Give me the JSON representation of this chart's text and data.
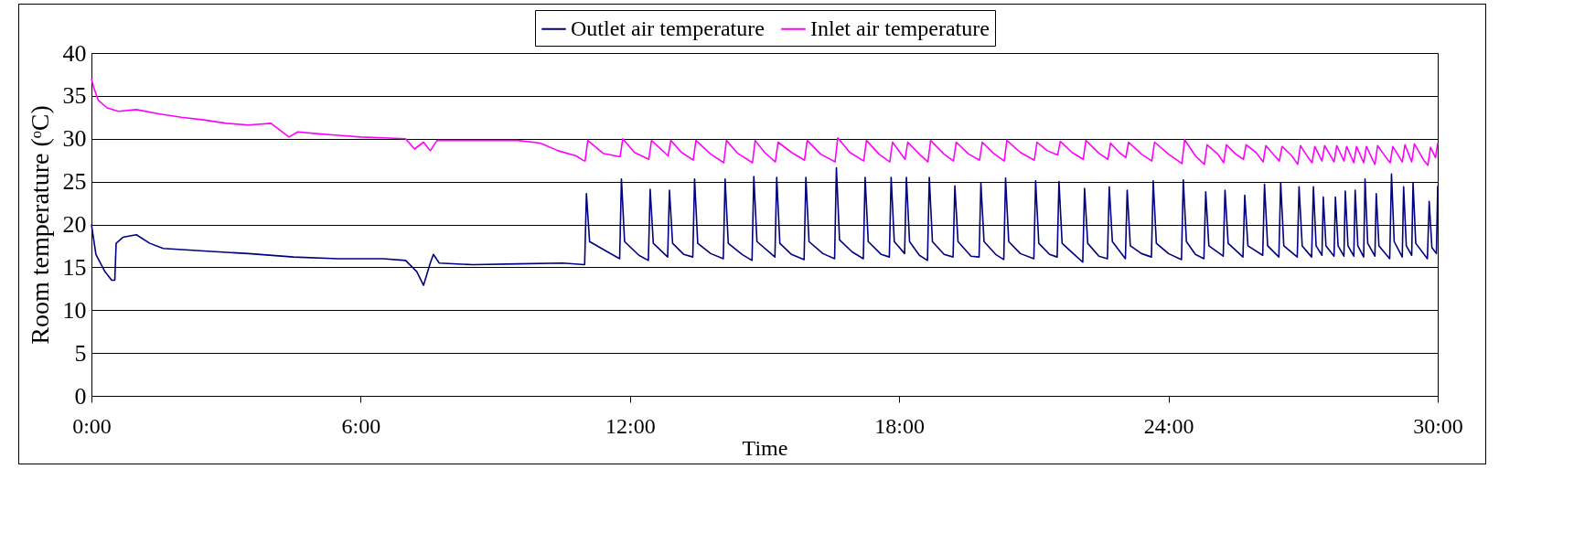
{
  "chart_data": {
    "type": "line",
    "xlabel": "Time",
    "ylabel": "Room temperature (ᵒC)",
    "ylim": [
      0,
      40
    ],
    "yticks": [
      0,
      5,
      10,
      15,
      20,
      25,
      30,
      35,
      40
    ],
    "xlim": [
      0,
      30
    ],
    "xticks": [
      {
        "value": 0,
        "label": "0:00"
      },
      {
        "value": 6,
        "label": "6:00"
      },
      {
        "value": 12,
        "label": "12:00"
      },
      {
        "value": 18,
        "label": "18:00"
      },
      {
        "value": 24,
        "label": "24:00"
      },
      {
        "value": 30,
        "label": "30:00"
      }
    ],
    "grid": "y",
    "legend": "top",
    "marker": "none",
    "line_style": "solid",
    "series": [
      {
        "name": "Outlet air temperature",
        "color": "#000080",
        "x": [
          0,
          0.1,
          0.3,
          0.45,
          0.52,
          0.55,
          0.7,
          1.0,
          1.3,
          1.6,
          2.5,
          3.5,
          4.5,
          5.5,
          6.5,
          7.0,
          7.25,
          7.4,
          7.55,
          7.62,
          7.75,
          8.5,
          9.5,
          10.5,
          10.99,
          11.03,
          11.1,
          11.5,
          11.77,
          11.81,
          11.88,
          12.2,
          12.41,
          12.45,
          12.52,
          12.84,
          12.88,
          12.95,
          13.2,
          13.4,
          13.44,
          13.51,
          13.8,
          14.08,
          14.12,
          14.19,
          14.5,
          14.72,
          14.76,
          14.83,
          15.23,
          15.27,
          15.34,
          15.6,
          15.88,
          15.92,
          15.99,
          16.3,
          16.56,
          16.6,
          16.67,
          16.95,
          17.2,
          17.24,
          17.31,
          17.6,
          17.78,
          17.82,
          17.89,
          18.12,
          18.16,
          18.23,
          18.45,
          18.63,
          18.67,
          18.74,
          19.0,
          19.2,
          19.24,
          19.31,
          19.6,
          19.78,
          19.82,
          19.89,
          20.15,
          20.33,
          20.37,
          20.44,
          20.7,
          21.0,
          21.04,
          21.11,
          21.35,
          21.52,
          21.56,
          21.63,
          21.9,
          22.09,
          22.13,
          22.2,
          22.45,
          22.64,
          22.68,
          22.75,
          23.04,
          23.08,
          23.15,
          23.4,
          23.62,
          23.66,
          23.73,
          24.0,
          24.29,
          24.33,
          24.4,
          24.6,
          24.79,
          24.83,
          24.9,
          25.22,
          25.26,
          25.33,
          25.66,
          25.7,
          25.77,
          26.1,
          26.14,
          26.21,
          26.46,
          26.5,
          26.57,
          26.87,
          26.91,
          26.98,
          27.19,
          27.23,
          27.29,
          27.42,
          27.45,
          27.51,
          27.69,
          27.72,
          27.78,
          27.91,
          27.94,
          28.0,
          28.13,
          28.16,
          28.22,
          28.35,
          28.38,
          28.44,
          28.6,
          28.63,
          28.69,
          28.93,
          28.97,
          29.03,
          29.21,
          29.24,
          29.3,
          29.42,
          29.45,
          29.51,
          29.77,
          29.81,
          29.87,
          29.97,
          30.0
        ],
        "values": [
          20,
          16.5,
          14.5,
          13.5,
          13.5,
          17.8,
          18.5,
          18.8,
          17.8,
          17.2,
          16.9,
          16.6,
          16.2,
          16.0,
          16.0,
          15.8,
          14.5,
          12.9,
          15.5,
          16.5,
          15.5,
          15.3,
          15.4,
          15.5,
          15.3,
          23.6,
          18,
          16.8,
          16.0,
          25.3,
          18,
          16.4,
          15.8,
          24.1,
          17.8,
          16.2,
          24.0,
          17.8,
          16.5,
          16.2,
          25.3,
          17.8,
          16.6,
          16.0,
          25.3,
          17.8,
          16.5,
          15.8,
          25.6,
          18,
          16.2,
          25.5,
          17.8,
          16.5,
          15.9,
          25.5,
          18,
          16.6,
          16.0,
          26.6,
          18.2,
          16.8,
          16.0,
          25.5,
          18,
          16.5,
          16.2,
          25.5,
          18,
          16.6,
          25.5,
          18,
          16.4,
          15.8,
          25.5,
          18,
          16.5,
          16.2,
          24.5,
          18,
          16.3,
          16.2,
          24.8,
          18,
          16.5,
          15.9,
          25.4,
          18,
          16.6,
          16.0,
          25.1,
          17.8,
          16.5,
          16.2,
          25.0,
          17.8,
          16.5,
          15.6,
          24.2,
          17.8,
          16.3,
          16.0,
          24.4,
          18,
          16.0,
          24.0,
          17.5,
          16.6,
          16.2,
          25.1,
          17.8,
          16.6,
          15.9,
          25.2,
          18,
          16.5,
          16.0,
          23.8,
          17.5,
          16.3,
          24.0,
          17.8,
          16.2,
          23.4,
          17.5,
          16.4,
          24.7,
          17.5,
          16.2,
          24.9,
          17.5,
          16.2,
          24.4,
          17.5,
          16.2,
          24.4,
          17.5,
          16.4,
          23.2,
          17.5,
          16.3,
          23.2,
          17.5,
          16.3,
          23.9,
          17.5,
          16.3,
          24.0,
          17.5,
          16.2,
          25.3,
          17.8,
          16.3,
          23.6,
          17.5,
          16.0,
          25.9,
          18,
          16.2,
          24.4,
          17.5,
          16.4,
          24.9,
          17.8,
          16.0,
          22.7,
          17.3,
          16.6,
          24.5
        ]
      },
      {
        "name": "Inlet air temperature",
        "color": "#ff00ff",
        "x": [
          0,
          0.05,
          0.15,
          0.35,
          0.6,
          1.0,
          1.5,
          2.0,
          2.5,
          3.0,
          3.5,
          4.0,
          4.4,
          4.6,
          5.0,
          5.5,
          6.0,
          6.5,
          7.0,
          7.2,
          7.4,
          7.55,
          7.7,
          8.5,
          9.5,
          10.0,
          10.4,
          10.8,
          10.95,
          11.0,
          11.06,
          11.4,
          11.78,
          11.84,
          12.1,
          12.42,
          12.48,
          12.85,
          12.91,
          13.15,
          13.41,
          13.47,
          13.8,
          14.09,
          14.15,
          14.4,
          14.73,
          14.79,
          15.0,
          15.24,
          15.3,
          15.6,
          15.89,
          15.95,
          16.25,
          16.57,
          16.63,
          16.9,
          17.21,
          17.27,
          17.55,
          17.79,
          17.85,
          18.13,
          18.19,
          18.45,
          18.64,
          18.7,
          19.0,
          19.21,
          19.27,
          19.55,
          19.79,
          19.85,
          20.1,
          20.34,
          20.4,
          20.7,
          21.01,
          21.07,
          21.3,
          21.53,
          21.59,
          21.85,
          22.1,
          22.16,
          22.45,
          22.65,
          22.71,
          22.9,
          23.05,
          23.11,
          23.4,
          23.63,
          23.69,
          24.0,
          24.3,
          24.36,
          24.6,
          24.8,
          24.86,
          25.1,
          25.23,
          25.29,
          25.5,
          25.67,
          25.73,
          25.95,
          26.11,
          26.17,
          26.35,
          26.47,
          26.53,
          26.75,
          26.88,
          26.94,
          27.1,
          27.2,
          27.26,
          27.42,
          27.48,
          27.69,
          27.75,
          27.91,
          27.97,
          28.13,
          28.19,
          28.35,
          28.41,
          28.6,
          28.66,
          28.85,
          28.94,
          29.0,
          29.21,
          29.27,
          29.42,
          29.48,
          29.7,
          29.78,
          29.84,
          29.95,
          30.0
        ],
        "values": [
          37,
          36,
          34.5,
          33.6,
          33.2,
          33.4,
          32.9,
          32.5,
          32.2,
          31.8,
          31.6,
          31.8,
          30.2,
          30.8,
          30.6,
          30.4,
          30.2,
          30.1,
          30.0,
          28.8,
          29.6,
          28.6,
          29.8,
          29.8,
          29.8,
          29.5,
          28.6,
          28.0,
          27.5,
          27.4,
          29.8,
          28.3,
          27.9,
          30.0,
          28.4,
          27.6,
          29.8,
          28.0,
          29.8,
          28.4,
          27.5,
          29.8,
          28.2,
          27.2,
          29.8,
          28.3,
          27.2,
          29.8,
          28.4,
          27.3,
          29.6,
          28.4,
          27.5,
          29.8,
          28.2,
          27.3,
          30.1,
          28.4,
          27.4,
          29.8,
          28.2,
          27.3,
          29.6,
          27.6,
          29.6,
          28.2,
          27.3,
          29.8,
          28.2,
          27.4,
          29.6,
          28.2,
          27.5,
          29.6,
          28.3,
          27.4,
          29.8,
          28.4,
          27.5,
          29.6,
          28.6,
          28.1,
          29.7,
          28.4,
          27.6,
          29.8,
          28.3,
          27.6,
          29.5,
          28.4,
          27.8,
          29.6,
          28.2,
          27.4,
          29.6,
          28.2,
          27.1,
          29.9,
          28.0,
          27.0,
          29.3,
          28.2,
          27.2,
          29.3,
          28.2,
          27.6,
          29.3,
          28.4,
          27.3,
          29.2,
          28.1,
          27.4,
          29.1,
          28.0,
          27.0,
          29.2,
          27.9,
          27.2,
          29.1,
          27.4,
          29.2,
          27.3,
          29.2,
          27.4,
          29.1,
          27.2,
          29.1,
          27.2,
          29.1,
          27.0,
          29.2,
          27.8,
          27.2,
          29.1,
          27.3,
          29.3,
          27.3,
          29.4,
          27.4,
          26.9,
          29.0,
          27.8,
          29.5
        ]
      }
    ]
  }
}
